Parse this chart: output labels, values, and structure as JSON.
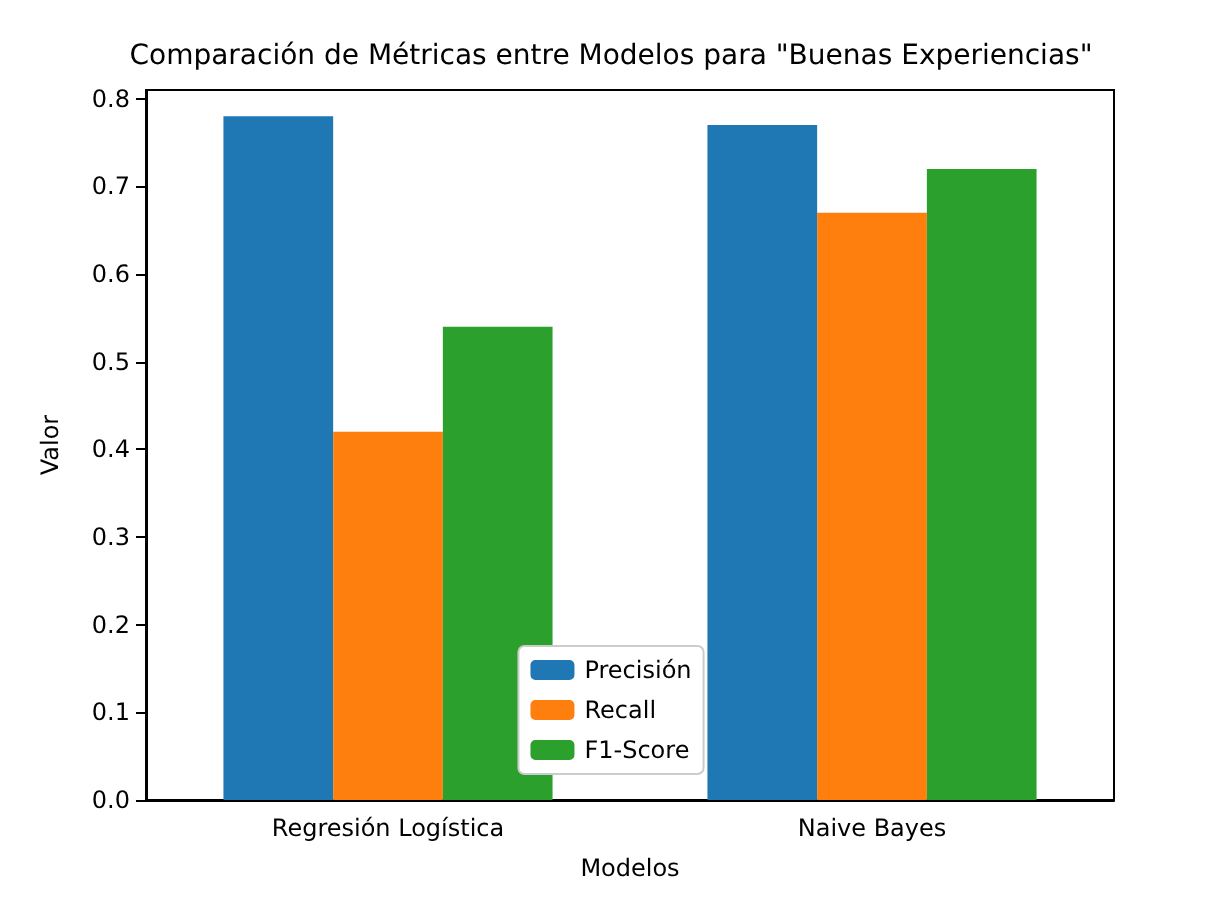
{
  "chart_data": {
    "type": "bar",
    "title": "Comparación de Métricas entre Modelos para \"Buenas Experiencias\"",
    "xlabel": "Modelos",
    "ylabel": "Valor",
    "categories": [
      "Regresión Logística",
      "Naive Bayes"
    ],
    "series": [
      {
        "name": "Precisión",
        "color": "#1f77b4",
        "values": [
          0.78,
          0.77
        ]
      },
      {
        "name": "Recall",
        "color": "#ff7f0e",
        "values": [
          0.42,
          0.67
        ]
      },
      {
        "name": "F1-Score",
        "color": "#2ca02c",
        "values": [
          0.54,
          0.72
        ]
      }
    ],
    "ylim": [
      0,
      0.81
    ],
    "yticks": [
      {
        "value": 0,
        "label": "0.0"
      },
      0.1,
      0.2,
      0.3,
      0.4,
      0.5,
      0.6,
      0.7,
      0.8
    ],
    "grid": false,
    "legend": "bottom"
  }
}
